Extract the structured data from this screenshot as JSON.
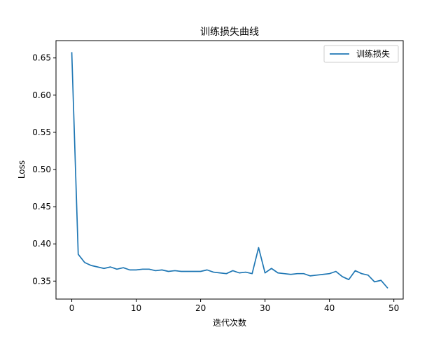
{
  "chart_data": {
    "type": "line",
    "title": "训练损失曲线",
    "xlabel": "迭代次数",
    "ylabel": "Loss",
    "xlim": [
      -2.45,
      51.45
    ],
    "ylim": [
      0.3258,
      0.6733
    ],
    "xticks": [
      0,
      10,
      20,
      30,
      40,
      50
    ],
    "yticks": [
      0.35,
      0.4,
      0.45,
      0.5,
      0.55,
      0.6,
      0.65
    ],
    "xtick_labels": [
      "0",
      "10",
      "20",
      "30",
      "40",
      "50"
    ],
    "ytick_labels": [
      "0.35",
      "0.40",
      "0.45",
      "0.50",
      "0.55",
      "0.60",
      "0.65"
    ],
    "grid": false,
    "legend_position": "top-right",
    "series": [
      {
        "name": "训练损失",
        "color": "#1f77b4",
        "x": [
          0,
          1,
          2,
          3,
          4,
          5,
          6,
          7,
          8,
          9,
          10,
          11,
          12,
          13,
          14,
          15,
          16,
          17,
          18,
          19,
          20,
          21,
          22,
          23,
          24,
          25,
          26,
          27,
          28,
          29,
          30,
          31,
          32,
          33,
          34,
          35,
          36,
          37,
          38,
          39,
          40,
          41,
          42,
          43,
          44,
          45,
          46,
          47,
          48,
          49
        ],
        "y": [
          0.657,
          0.386,
          0.375,
          0.371,
          0.369,
          0.367,
          0.369,
          0.366,
          0.368,
          0.365,
          0.365,
          0.366,
          0.366,
          0.364,
          0.365,
          0.363,
          0.364,
          0.363,
          0.363,
          0.363,
          0.363,
          0.365,
          0.362,
          0.361,
          0.36,
          0.364,
          0.361,
          0.362,
          0.36,
          0.395,
          0.361,
          0.367,
          0.361,
          0.36,
          0.359,
          0.36,
          0.36,
          0.357,
          0.358,
          0.359,
          0.36,
          0.363,
          0.356,
          0.352,
          0.364,
          0.36,
          0.358,
          0.349,
          0.351,
          0.341
        ]
      }
    ]
  }
}
